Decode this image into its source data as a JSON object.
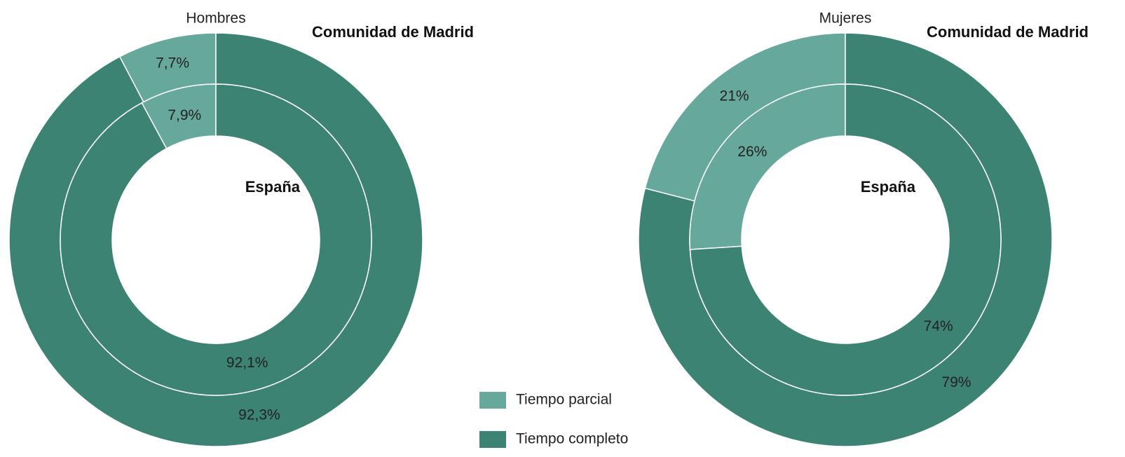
{
  "legend": {
    "labels": [
      "Tiempo parcial",
      "Tiempo completo"
    ],
    "colors": [
      "#67a89c",
      "#3c8374"
    ]
  },
  "chart_data": [
    {
      "type": "donut",
      "title": "Hombres",
      "rings": [
        {
          "name": "Comunidad de Madrid",
          "values": [
            7.7,
            92.3
          ],
          "value_labels": [
            "7,7%",
            "92,3%"
          ]
        },
        {
          "name": "España",
          "values": [
            7.9,
            92.1
          ],
          "value_labels": [
            "7,9%",
            "92,1%"
          ]
        }
      ]
    },
    {
      "type": "donut",
      "title": "Mujeres",
      "rings": [
        {
          "name": "Comunidad de Madrid",
          "values": [
            21,
            79
          ],
          "value_labels": [
            "21%",
            "79%"
          ]
        },
        {
          "name": "España",
          "values": [
            26,
            74
          ],
          "value_labels": [
            "26%",
            "74%"
          ]
        }
      ]
    }
  ]
}
